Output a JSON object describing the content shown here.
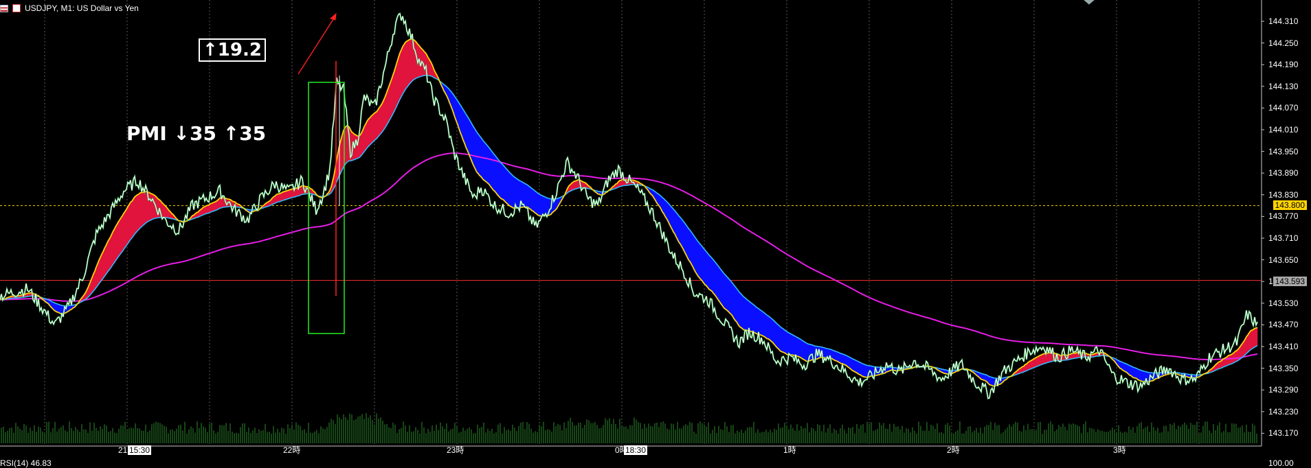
{
  "header": {
    "symbol_label": "USDJPY, M1:  US Dollar vs Yen"
  },
  "annotations": {
    "move_label": "↑19.2",
    "pmi_label": "PMI  ↓35  ↑35"
  },
  "axis": {
    "price_ticks": [
      "144.310",
      "144.250",
      "144.190",
      "144.130",
      "144.070",
      "144.010",
      "143.950",
      "143.890",
      "143.830",
      "143.770",
      "143.710",
      "143.650",
      "143.590",
      "143.530",
      "143.470",
      "143.410",
      "143.350",
      "143.290",
      "143.230",
      "143.170"
    ],
    "price_min": 143.17,
    "price_max": 144.31,
    "current_price": "143.800",
    "red_line_price": "143.593",
    "time_ticks": [
      {
        "label": "21時"
      },
      {
        "label": "15:30",
        "boxed": true
      },
      {
        "label": "22時"
      },
      {
        "label": "23時"
      },
      {
        "label": "0時"
      },
      {
        "label": "18:30",
        "boxed": true
      },
      {
        "label": "1時"
      },
      {
        "label": "2時"
      },
      {
        "label": "3時"
      }
    ],
    "rsi_label": "RSI(14) 46.83",
    "rsi_top": "100.00"
  },
  "colors": {
    "background": "#000000",
    "price_line": "#ffffff",
    "fast_ma": "#ffd400",
    "slow_ma": "#34b8ff",
    "long_ma": "#e61ee6",
    "cloud_up": "#e0143c",
    "cloud_down": "#0a10ff",
    "volume": "#2e8b2e",
    "grid": "#5a5a5a",
    "current_price_line": "#ffd400",
    "red_level": "#ff3030"
  }
}
